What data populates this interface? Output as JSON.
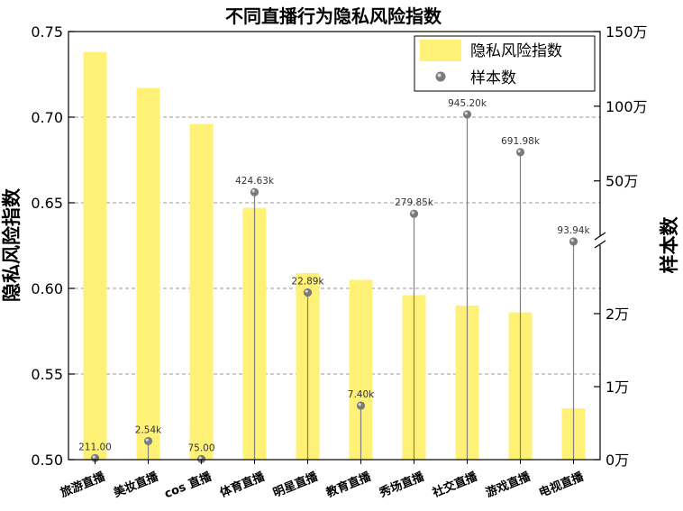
{
  "chart_data": {
    "type": "bar",
    "title": "不同直播行为隐私风险指数",
    "categories": [
      "旅游直播",
      "美妆直播",
      "cos 直播",
      "体育直播",
      "明星直播",
      "教育直播",
      "秀场直播",
      "社交直播",
      "游戏直播",
      "电视直播"
    ],
    "series": [
      {
        "name": "隐私风险指数",
        "axis": "left",
        "mark": "bar",
        "color": "#fff176",
        "values": [
          0.738,
          0.717,
          0.696,
          0.647,
          0.609,
          0.605,
          0.596,
          0.59,
          0.586,
          0.53
        ]
      },
      {
        "name": "样本数",
        "axis": "right",
        "mark": "lollipop",
        "color": "#808080",
        "values": [
          211,
          2540,
          75,
          424630,
          22890,
          7400,
          279850,
          945200,
          691980,
          93940
        ],
        "labels": [
          "211.00",
          "2.54k",
          "75.00",
          "424.63k",
          "22.89k",
          "7.40k",
          "279.85k",
          "945.20k",
          "691.98k",
          "93.94k"
        ]
      }
    ],
    "ylabel": "隐私风险指数",
    "ylim": [
      0.5,
      0.75
    ],
    "yticks": [
      "0.50",
      "0.55",
      "0.60",
      "0.65",
      "0.70",
      "0.75"
    ],
    "y2label": "样本数",
    "y2_scale": "broken",
    "y2_segments": [
      {
        "range": [
          0,
          30000
        ],
        "ticks": [
          "0万",
          "1万",
          "2万"
        ],
        "tick_values": [
          0,
          10000,
          20000
        ]
      },
      {
        "range": [
          100000,
          1500000
        ],
        "ticks": [
          "50万",
          "100万",
          "150万"
        ],
        "tick_values": [
          500000,
          1000000,
          1500000
        ]
      }
    ],
    "grid": true,
    "legend": "top-right"
  }
}
